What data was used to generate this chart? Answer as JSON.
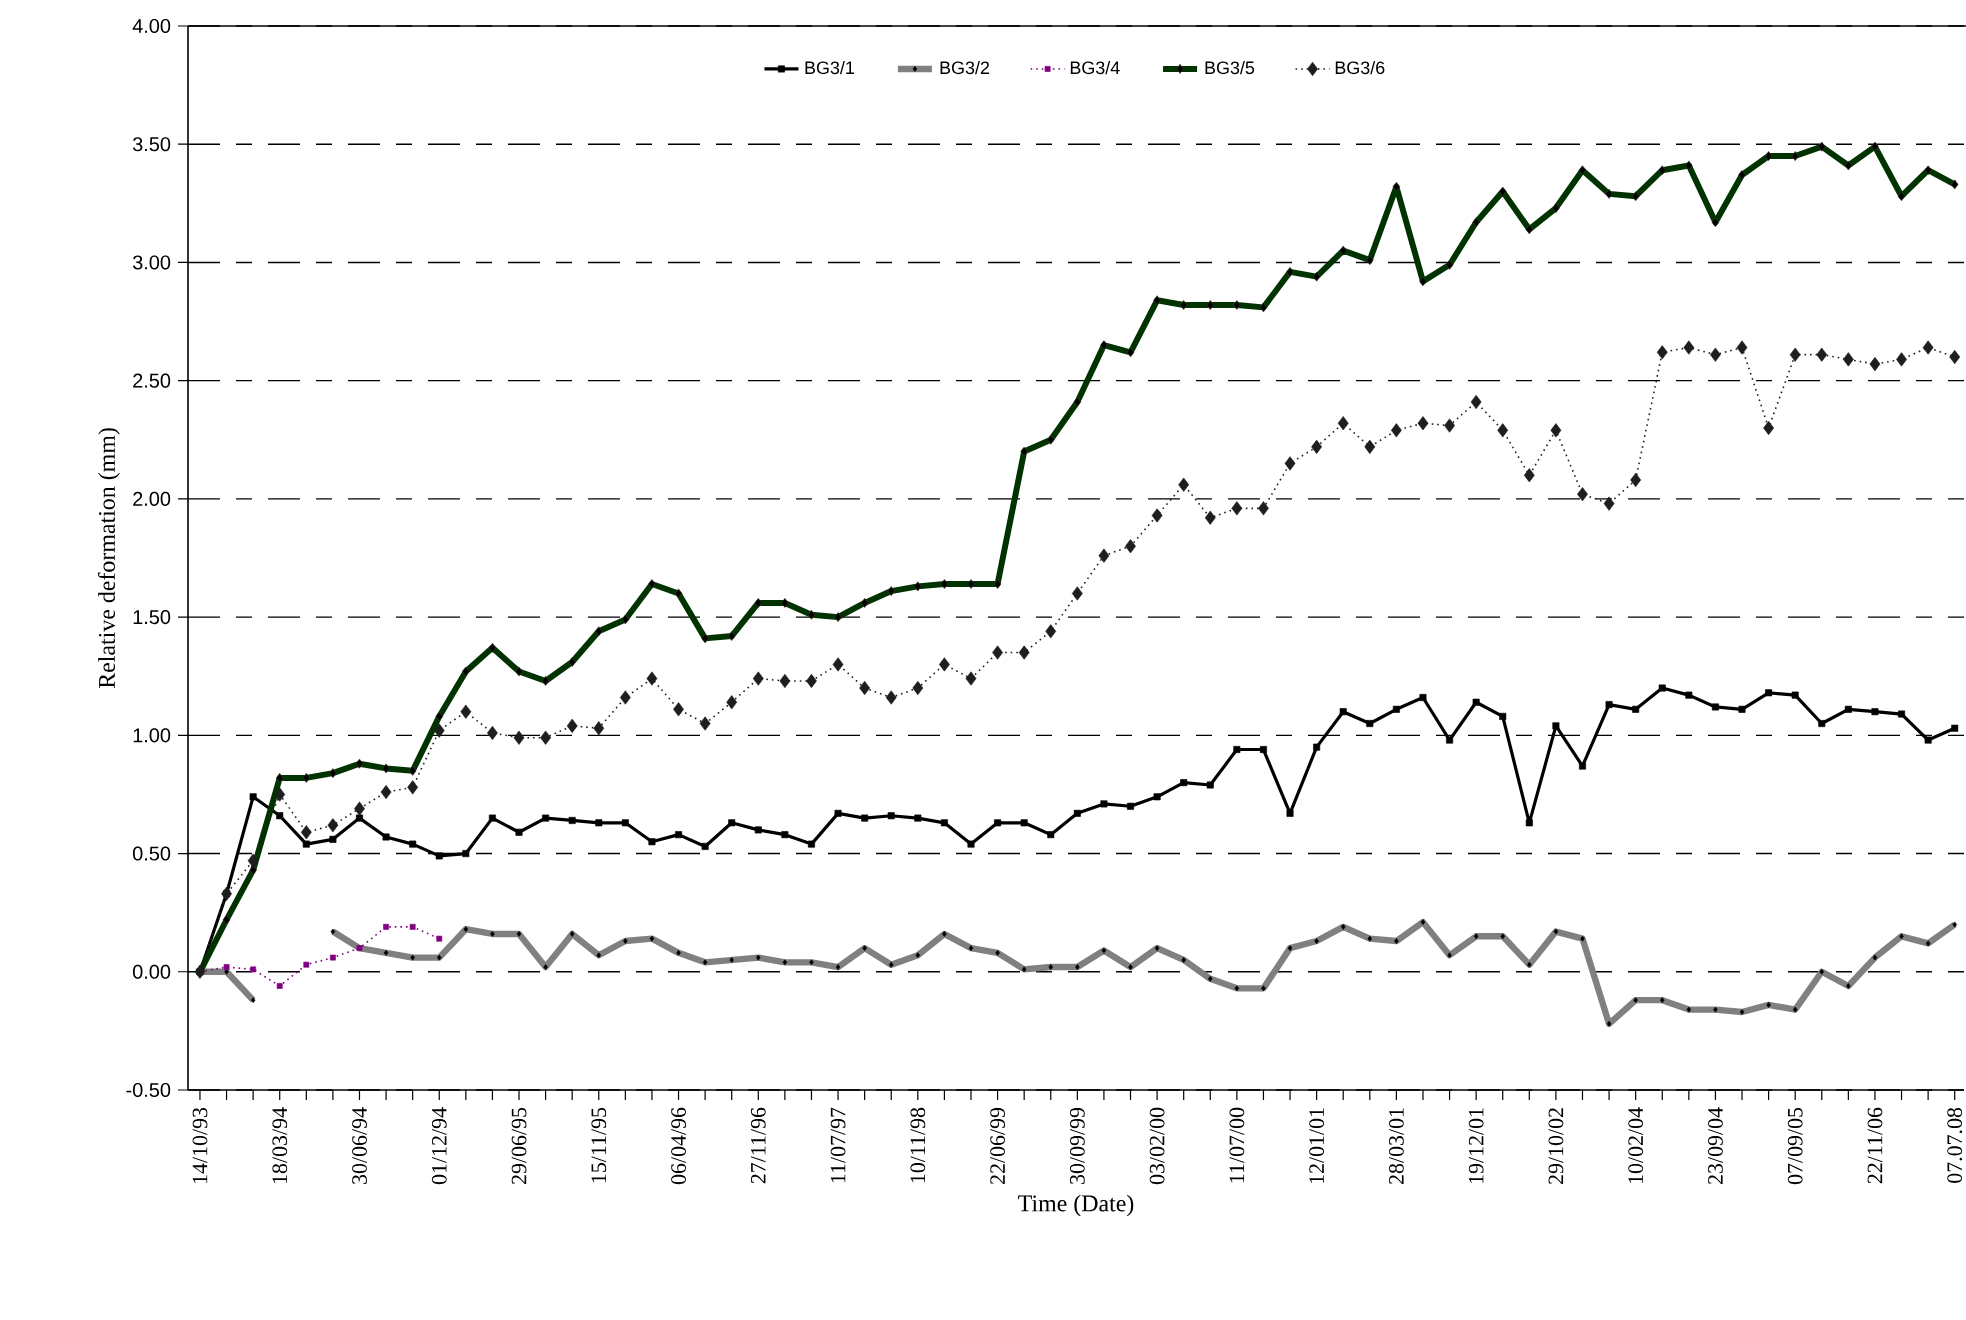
{
  "chart_data": {
    "type": "line",
    "xlabel": "Time (Date)",
    "ylabel": "Relative deformation (mm)",
    "categories": [
      "14/10/93",
      null,
      null,
      "18/03/94",
      null,
      null,
      "30/06/94",
      null,
      null,
      "01/12/94",
      null,
      null,
      "29/06/95",
      null,
      null,
      "15/11/95",
      null,
      null,
      "06/04/96",
      null,
      null,
      "27/11/96",
      null,
      null,
      "11/07/97",
      null,
      null,
      "10/11/98",
      null,
      null,
      "22/06/99",
      null,
      null,
      "30/09/99",
      null,
      null,
      "03/02/00",
      null,
      null,
      "11/07/00",
      null,
      null,
      "12/01/01",
      null,
      null,
      "28/03/01",
      null,
      null,
      "19/12/01",
      null,
      null,
      "29/10/02",
      null,
      null,
      "10/02/04",
      null,
      null,
      "23/09/04",
      null,
      null,
      "07/09/05",
      null,
      null,
      "22/11/06",
      null,
      null,
      "07.07.08"
    ],
    "ylim": [
      -0.5,
      4.0
    ],
    "yticks": [
      {
        "value": -0.5,
        "label": "-0.50"
      },
      {
        "value": 0,
        "label": "0.00"
      },
      {
        "value": 0.5,
        "label": "0.50"
      },
      {
        "value": 1,
        "label": "1.00"
      },
      {
        "value": 1.5,
        "label": "1.50"
      },
      {
        "value": 2,
        "label": "2.00"
      },
      {
        "value": 2.5,
        "label": "2.50"
      },
      {
        "value": 3,
        "label": "3.00"
      },
      {
        "value": 3.5,
        "label": "3.50"
      },
      {
        "value": 4,
        "label": "4.00"
      }
    ],
    "grid": "y",
    "legend": "top",
    "series": [
      {
        "name": "BG3/1",
        "color": "#000000",
        "marker": "square",
        "line_style": "solid",
        "values": [
          0,
          0.33,
          0.74,
          0.66,
          0.54,
          0.56,
          0.65,
          0.57,
          0.54,
          0.49,
          0.5,
          0.65,
          0.59,
          0.65,
          0.64,
          0.63,
          0.63,
          0.55,
          0.58,
          0.53,
          0.63,
          0.6,
          0.58,
          0.54,
          0.67,
          0.65,
          0.66,
          0.65,
          0.63,
          0.54,
          0.63,
          0.63,
          0.58,
          0.67,
          0.71,
          0.7,
          0.74,
          0.8,
          0.79,
          0.94,
          0.94,
          0.67,
          0.95,
          1.1,
          1.05,
          1.11,
          1.16,
          0.98,
          1.14,
          1.08,
          0.63,
          1.04,
          0.87,
          1.13,
          1.11,
          1.2,
          1.17,
          1.12,
          1.11,
          1.18,
          1.17,
          1.05,
          1.11,
          1.1,
          1.09,
          0.98,
          1.03
        ]
      },
      {
        "name": "BG3/2",
        "color": "#808080",
        "marker": "diamond",
        "line_style": "solid",
        "values": [
          0,
          0,
          -0.12,
          null,
          null,
          0.17,
          0.1,
          0.08,
          0.06,
          0.06,
          0.18,
          0.16,
          0.16,
          0.02,
          0.16,
          0.07,
          0.13,
          0.14,
          0.08,
          0.04,
          0.05,
          0.06,
          0.04,
          0.04,
          0.02,
          0.1,
          0.03,
          0.07,
          0.16,
          0.1,
          0.08,
          0.01,
          0.02,
          0.02,
          0.09,
          0.02,
          0.1,
          0.05,
          -0.03,
          -0.07,
          -0.07,
          0.1,
          0.13,
          0.19,
          0.14,
          0.13,
          0.21,
          0.07,
          0.15,
          0.15,
          0.03,
          0.17,
          0.14,
          -0.22,
          -0.12,
          -0.12,
          -0.16,
          -0.16,
          -0.17,
          -0.14,
          -0.16,
          0.0,
          -0.06,
          0.06,
          0.15,
          0.12,
          0.2
        ]
      },
      {
        "name": "BG3/4",
        "color": "#800080",
        "marker": "square",
        "line_style": "dotted",
        "values": [
          0,
          0.02,
          0.01,
          -0.06,
          0.03,
          0.06,
          0.1,
          0.19,
          0.19,
          0.14,
          null,
          null,
          null,
          null,
          null,
          null,
          null,
          null,
          null,
          null,
          null,
          null,
          null,
          null,
          null,
          null,
          null,
          null,
          null,
          null,
          null,
          null,
          null,
          null,
          null,
          null,
          null,
          null,
          null,
          null,
          null,
          null,
          null,
          null,
          null,
          null,
          null,
          null,
          null,
          null,
          null,
          null,
          null,
          null,
          null,
          null,
          null,
          null,
          null,
          null,
          null,
          null,
          null,
          null,
          null,
          null,
          null
        ]
      },
      {
        "name": "BG3/5",
        "color": "#003300",
        "marker": "diamond",
        "line_style": "solid",
        "values": [
          0,
          0.22,
          0.43,
          0.82,
          0.82,
          0.84,
          0.88,
          0.86,
          0.85,
          1.08,
          1.27,
          1.37,
          1.27,
          1.23,
          1.31,
          1.44,
          1.49,
          1.64,
          1.6,
          1.41,
          1.42,
          1.56,
          1.56,
          1.51,
          1.5,
          1.56,
          1.61,
          1.63,
          1.64,
          1.64,
          1.64,
          2.2,
          2.25,
          2.41,
          2.65,
          2.62,
          2.84,
          2.82,
          2.82,
          2.82,
          2.81,
          2.96,
          2.94,
          3.05,
          3.01,
          3.32,
          2.92,
          2.99,
          3.17,
          3.3,
          3.14,
          3.23,
          3.39,
          3.29,
          3.28,
          3.39,
          3.41,
          3.17,
          3.37,
          3.45,
          3.45,
          3.49,
          3.41,
          3.49,
          3.28,
          3.39,
          3.33
        ]
      },
      {
        "name": "BG3/6",
        "color": "#1e1e1e",
        "marker": "diamond",
        "line_style": "dotted",
        "values": [
          0,
          0.33,
          0.47,
          0.75,
          0.59,
          0.62,
          0.69,
          0.76,
          0.78,
          1.02,
          1.1,
          1.01,
          0.99,
          0.99,
          1.04,
          1.03,
          1.16,
          1.24,
          1.11,
          1.05,
          1.14,
          1.24,
          1.23,
          1.23,
          1.3,
          1.2,
          1.16,
          1.2,
          1.3,
          1.24,
          1.35,
          1.35,
          1.44,
          1.6,
          1.76,
          1.8,
          1.93,
          2.06,
          1.92,
          1.96,
          1.96,
          2.15,
          2.22,
          2.32,
          2.22,
          2.29,
          2.32,
          2.31,
          2.41,
          2.29,
          2.1,
          2.29,
          2.02,
          1.98,
          2.08,
          2.62,
          2.64,
          2.61,
          2.64,
          2.3,
          2.61,
          2.61,
          2.59,
          2.57,
          2.59,
          2.64,
          2.6
        ]
      }
    ]
  }
}
